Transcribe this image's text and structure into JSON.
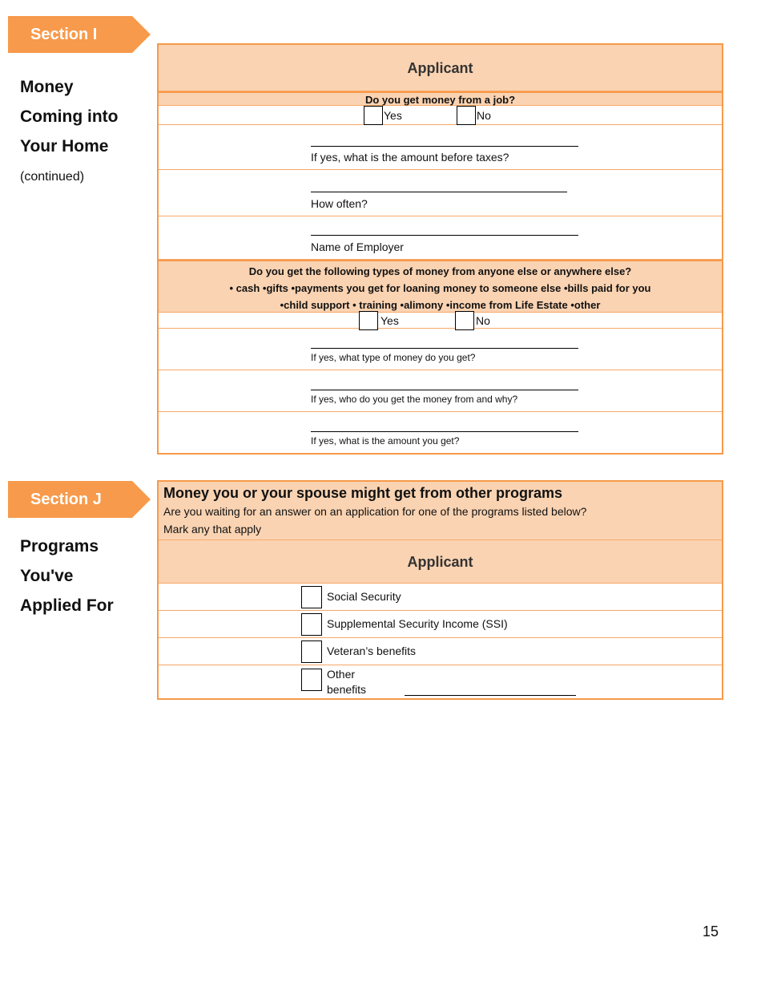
{
  "section_i": {
    "tab": "Section I",
    "title_lines": [
      "Money",
      "Coming into",
      "Your Home"
    ],
    "note": "(continued)",
    "header": "Applicant",
    "q1": "Do you get money from a job?",
    "yes": "Yes",
    "no": "No",
    "f1": "If yes, what is the amount before taxes?",
    "f2": "How often?",
    "f3": "Name of Employer",
    "q2_lines": [
      "Do you get the following types of money from anyone else or anywhere else?",
      "• cash   •gifts •payments you get for loaning money to someone else   •bills paid for you",
      "•child support • training   •alimony   •income from Life Estate   •other"
    ],
    "f4": "If yes, what type of money do you get?",
    "f5": "If yes, who do you get the money from and why?",
    "f6": "If yes, what is the amount you get?"
  },
  "section_j": {
    "tab": "Section J",
    "title_lines": [
      "Programs",
      "You've",
      "Applied For"
    ],
    "heading": "Money you or your spouse might get from other programs",
    "sub": "Are you waiting for an answer on an application for one of the programs listed below?",
    "instr": "Mark any that apply",
    "header": "Applicant",
    "options": [
      "Social Security",
      "Supplemental Security Income (SSI)",
      "Veteran’s benefits"
    ],
    "other_lines": [
      "Other",
      "benefits"
    ]
  },
  "page_number": "15",
  "colors": {
    "accent": "#f79a4b",
    "fill": "#fad3b2"
  }
}
